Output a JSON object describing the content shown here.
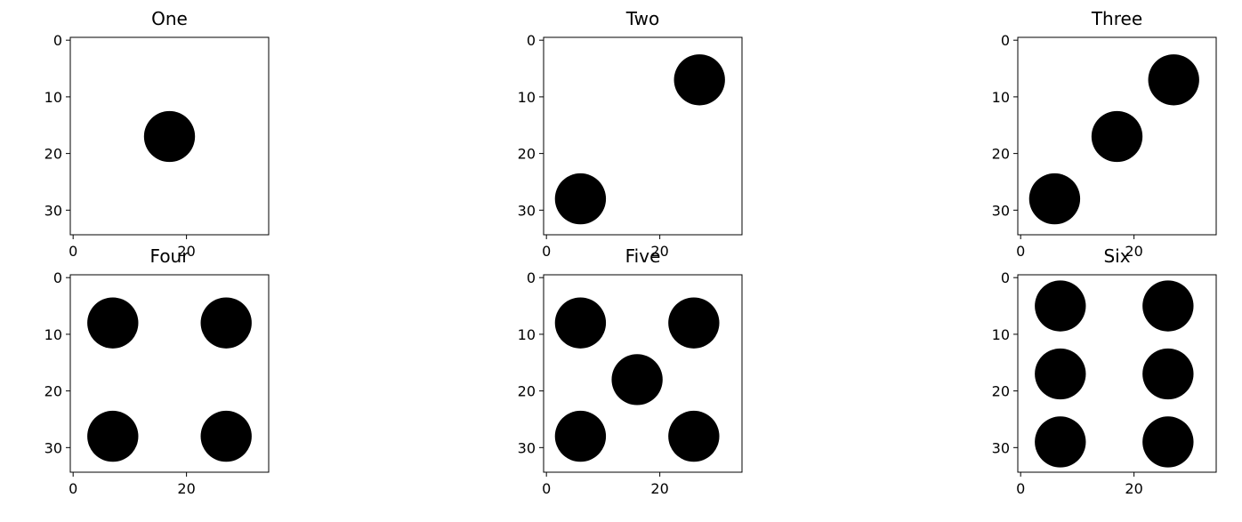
{
  "chart_data": {
    "type": "image",
    "image_size": [
      35,
      35
    ],
    "x_ticks": [
      0,
      20
    ],
    "y_ticks": [
      0,
      10,
      20,
      30
    ],
    "ink_color": "#000000",
    "background_color": "#ffffff",
    "panels": [
      {
        "title": "One",
        "dots": [
          {
            "x": 17,
            "y": 17
          }
        ]
      },
      {
        "title": "Two",
        "dots": [
          {
            "x": 27,
            "y": 7
          },
          {
            "x": 6,
            "y": 28
          }
        ]
      },
      {
        "title": "Three",
        "dots": [
          {
            "x": 27,
            "y": 7
          },
          {
            "x": 17,
            "y": 17
          },
          {
            "x": 6,
            "y": 28
          }
        ]
      },
      {
        "title": "Four",
        "dots": [
          {
            "x": 7,
            "y": 8
          },
          {
            "x": 27,
            "y": 8
          },
          {
            "x": 7,
            "y": 28
          },
          {
            "x": 27,
            "y": 28
          }
        ]
      },
      {
        "title": "Five",
        "dots": [
          {
            "x": 6,
            "y": 8
          },
          {
            "x": 26,
            "y": 8
          },
          {
            "x": 16,
            "y": 18
          },
          {
            "x": 6,
            "y": 28
          },
          {
            "x": 26,
            "y": 28
          }
        ]
      },
      {
        "title": "Six",
        "dots": [
          {
            "x": 7,
            "y": 5
          },
          {
            "x": 26,
            "y": 5
          },
          {
            "x": 7,
            "y": 17
          },
          {
            "x": 26,
            "y": 17
          },
          {
            "x": 7,
            "y": 29
          },
          {
            "x": 26,
            "y": 29
          }
        ]
      }
    ]
  }
}
